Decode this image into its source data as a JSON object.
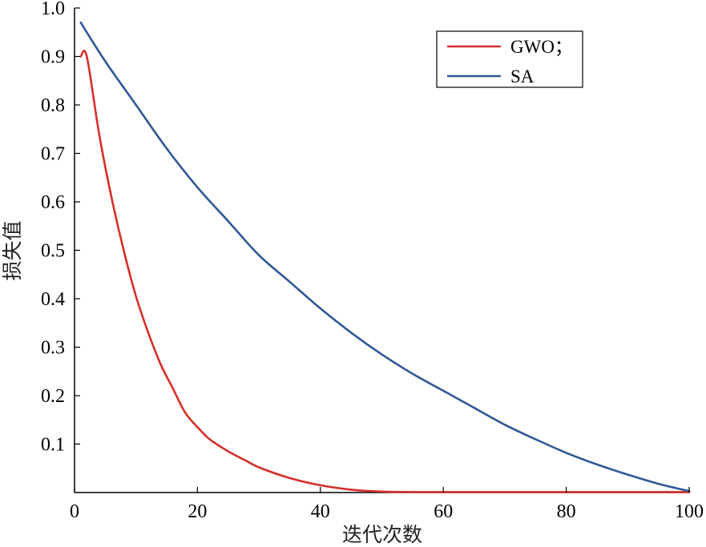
{
  "chart_data": {
    "type": "line",
    "title": "",
    "xlabel": "迭代次数",
    "ylabel": "损失值",
    "xlim": [
      0,
      100
    ],
    "ylim": [
      0,
      1.0
    ],
    "x_ticks": [
      0,
      20,
      40,
      60,
      80,
      100
    ],
    "x_tick_labels": [
      "0",
      "20",
      "40",
      "60",
      "80",
      "100"
    ],
    "y_ticks": [
      0.1,
      0.2,
      0.3,
      0.4,
      0.5,
      0.6,
      0.7,
      0.8,
      0.9,
      1.0
    ],
    "y_tick_labels": [
      "0.1",
      "0.2",
      "0.3",
      "0.4",
      "0.5",
      "0.6",
      "0.7",
      "0.8",
      "0.9",
      "1.0"
    ],
    "grid": false,
    "legend_position": "top-right",
    "series": [
      {
        "name": "GWO；",
        "color": "#d62f2a",
        "x": [
          1,
          2,
          4,
          6,
          8,
          10,
          12,
          14,
          16,
          18,
          20,
          22,
          25,
          28,
          30,
          35,
          40,
          45,
          50,
          55,
          60,
          70,
          80,
          90,
          100
        ],
        "y": [
          0.9,
          0.9,
          0.74,
          0.61,
          0.5,
          0.405,
          0.33,
          0.265,
          0.215,
          0.165,
          0.135,
          0.11,
          0.085,
          0.065,
          0.052,
          0.03,
          0.015,
          0.006,
          0.002,
          0.001,
          0.001,
          0.001,
          0.001,
          0.001,
          0.001
        ]
      },
      {
        "name": "SA",
        "color": "#2e5896",
        "x": [
          1,
          5,
          10,
          15,
          20,
          25,
          30,
          35,
          40,
          45,
          50,
          55,
          60,
          65,
          70,
          75,
          80,
          85,
          90,
          95,
          100
        ],
        "y": [
          0.97,
          0.89,
          0.8,
          0.71,
          0.63,
          0.56,
          0.49,
          0.435,
          0.38,
          0.33,
          0.285,
          0.245,
          0.21,
          0.175,
          0.14,
          0.11,
          0.082,
          0.058,
          0.037,
          0.018,
          0.003
        ]
      }
    ]
  }
}
